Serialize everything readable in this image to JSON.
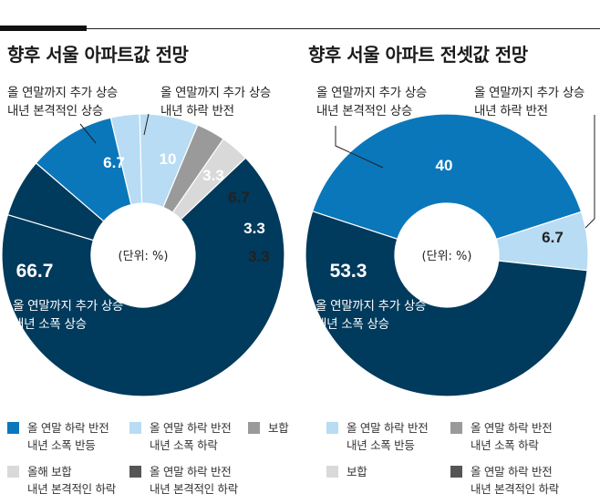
{
  "colors": {
    "dark_navy": "#003a5c",
    "blue": "#0a77bb",
    "light_blue": "#b7dcf3",
    "gray": "#9a9a9a",
    "light_gray": "#d9d9d9",
    "dark_gray": "#555555"
  },
  "center_label": "(단위: %)",
  "chart_data": [
    {
      "type": "pie",
      "title": "향후 서울 아파트값 전망",
      "slices": [
        {
          "label": "올 연말까지 추가 상승 내년 본격적인 상승",
          "value": 6.7,
          "display": "6.7",
          "color": "#003a5c"
        },
        {
          "label": "올 연말까지 추가 상승 내년 하락 반전",
          "value": 10,
          "display": "10",
          "color": "#0a77bb"
        },
        {
          "label": "올 연말 하락 반전 내년 소폭 반등",
          "value": 3.3,
          "display": "3.3",
          "color": "#b7dcf3"
        },
        {
          "label": "올 연말 하락 반전 내년 소폭 하락",
          "value": 6.7,
          "display": "6.7",
          "color": "#b7dcf3"
        },
        {
          "label": "보합",
          "value": 3.3,
          "display": "3.3",
          "color": "#9a9a9a"
        },
        {
          "label": "올해 보합 내년 본격적인 하락",
          "value": 3.3,
          "display": "3.3",
          "color": "#d9d9d9"
        },
        {
          "label": "올 연말까지 추가 상승 내년 소폭 상승",
          "value": 66.7,
          "display": "66.7",
          "color": "#003a5c"
        }
      ]
    },
    {
      "type": "pie",
      "title": "향후 서울 아파트 전셋값 전망",
      "slices": [
        {
          "label": "올 연말까지 추가 상승 내년 본격적인 상승",
          "value": 40,
          "display": "40",
          "color": "#0a77bb"
        },
        {
          "label": "올 연말까지 추가 상승 내년 하락 반전",
          "value": 6.7,
          "display": "6.7",
          "color": "#b7dcf3"
        },
        {
          "label": "올 연말까지 추가 상승 내년 소폭 상승",
          "value": 53.3,
          "display": "53.3",
          "color": "#003a5c"
        }
      ]
    }
  ],
  "annotations": {
    "left_1a": "올 연말까지 추가 상승",
    "left_1b": "내년 본격적인 상승",
    "left_2a": "올 연말까지 추가 상승",
    "left_2b": "내년 하락 반전",
    "left_3a": "올 연말까지 추가 상승",
    "left_3b": "내년 소폭 상승",
    "right_1a": "올 연말까지 추가 상승",
    "right_1b": "내년 본격적인 상승",
    "right_2a": "올 연말까지 추가 상승",
    "right_2b": "내년 하락 반전",
    "right_3a": "올 연말까지 추가 상승",
    "right_3b": "내년 소폭 상승"
  },
  "legend_left": [
    {
      "line1": "올 연말 하락 반전",
      "line2": "내년 소폭 반등",
      "color": "#0a77bb"
    },
    {
      "line1": "올 연말 하락 반전",
      "line2": "내년 소폭 하락",
      "color": "#b7dcf3"
    },
    {
      "line1": "보합",
      "line2": "",
      "color": "#9a9a9a"
    },
    {
      "line1": "올해 보합",
      "line2": "내년 본격적인 하락",
      "color": "#d9d9d9"
    },
    {
      "line1": "올 연말 하락 반전",
      "line2": "내년 본격적인 하락",
      "color": "#555555"
    }
  ],
  "legend_right": [
    {
      "line1": "올 연말 하락 반전",
      "line2": "내년 소폭 반등",
      "color": "#b7dcf3"
    },
    {
      "line1": "올 연말 하락 반전",
      "line2": "내년 소폭 하락",
      "color": "#9a9a9a"
    },
    {
      "line1": "보합",
      "line2": "",
      "color": "#d9d9d9"
    },
    {
      "line1": "올 연말 하락 반전",
      "line2": "내년 본격적인 하락",
      "color": "#555555"
    }
  ]
}
